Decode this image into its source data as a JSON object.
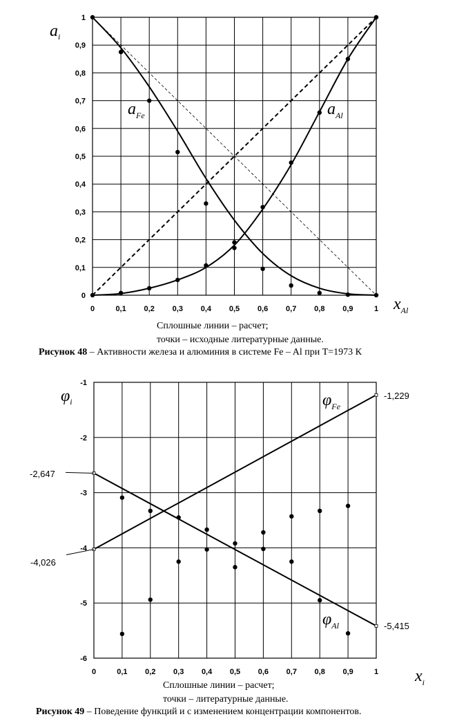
{
  "chart_data": [
    {
      "type": "line",
      "xlim": [
        0,
        1
      ],
      "ylim": [
        0,
        1
      ],
      "x_ticks": [
        "0",
        "0,1",
        "0,2",
        "0,3",
        "0,4",
        "0,5",
        "0,6",
        "0,7",
        "0,8",
        "0,9",
        "1"
      ],
      "y_ticks": [
        "0",
        "0,1",
        "0,2",
        "0,3",
        "0,4",
        "0,5",
        "0,6",
        "0,7",
        "0,8",
        "0,9",
        "1"
      ],
      "ylabel": {
        "main": "a",
        "sub": "i"
      },
      "xlabel": {
        "main": "x",
        "sub": "Al"
      },
      "grid": true,
      "series": [
        {
          "name": "a_Fe",
          "style": "solid",
          "x": [
            0,
            0.1,
            0.2,
            0.3,
            0.4,
            0.5,
            0.6,
            0.7,
            0.8,
            0.9,
            1
          ],
          "values": [
            1,
            0.89,
            0.75,
            0.59,
            0.42,
            0.27,
            0.15,
            0.07,
            0.025,
            0.005,
            0
          ]
        },
        {
          "name": "a_Al",
          "style": "solid",
          "x": [
            0,
            0.1,
            0.2,
            0.3,
            0.4,
            0.5,
            0.6,
            0.7,
            0.8,
            0.9,
            1
          ],
          "values": [
            0,
            0.006,
            0.025,
            0.055,
            0.1,
            0.18,
            0.31,
            0.47,
            0.66,
            0.85,
            1
          ]
        },
        {
          "name": "Raoult Al",
          "style": "dashed",
          "x": [
            0,
            1
          ],
          "values": [
            0,
            1
          ]
        },
        {
          "name": "Raoult Fe",
          "style": "thin-dashed",
          "x": [
            0,
            1
          ],
          "values": [
            1,
            0
          ]
        },
        {
          "name": "a_Fe points",
          "style": "points",
          "x": [
            0,
            0.1,
            0.2,
            0.3,
            0.4,
            0.5,
            0.6,
            0.7,
            0.8,
            0.9,
            1
          ],
          "values": [
            1,
            0.875,
            0.7,
            0.515,
            0.33,
            0.17,
            0.095,
            0.035,
            0.008,
            0.002,
            0
          ]
        },
        {
          "name": "a_Al points",
          "style": "points",
          "x": [
            0,
            0.1,
            0.2,
            0.3,
            0.4,
            0.5,
            0.6,
            0.7,
            0.8,
            0.9,
            1
          ],
          "values": [
            0,
            0.008,
            0.025,
            0.055,
            0.107,
            0.19,
            0.317,
            0.477,
            0.657,
            0.85,
            1
          ]
        }
      ],
      "annotations": [
        {
          "main": "a",
          "sub": "Fe"
        },
        {
          "main": "a",
          "sub": "Al"
        }
      ],
      "notes": [
        "Сплошные линии – расчет;",
        "точки – исходные литературные данные."
      ],
      "caption": {
        "bold": "Рисунок 48",
        "rest": " – Активности железа и алюминия в системе Fe – Al  при T=1973 К"
      }
    },
    {
      "type": "line",
      "xlim": [
        0,
        1
      ],
      "ylim": [
        -6,
        -1
      ],
      "x_ticks": [
        "0",
        "0,1",
        "0,2",
        "0,3",
        "0,4",
        "0,5",
        "0,6",
        "0,7",
        "0,8",
        "0,9",
        "1"
      ],
      "y_ticks": [
        "-1",
        "-2",
        "-3",
        "-4",
        "-5",
        "-6"
      ],
      "ylabel": {
        "main": "φ",
        "sub": "i"
      },
      "xlabel": {
        "main": "x",
        "sub": "i"
      },
      "grid": true,
      "series": [
        {
          "name": "φ_Fe",
          "style": "solid",
          "x": [
            0,
            1
          ],
          "values": [
            -4.026,
            -1.229
          ]
        },
        {
          "name": "φ_Al",
          "style": "solid",
          "x": [
            0,
            1
          ],
          "values": [
            -2.647,
            -5.415
          ]
        },
        {
          "name": "points A",
          "style": "points",
          "x": [
            0.1,
            0.2,
            0.3,
            0.4,
            0.5,
            0.6,
            0.7,
            0.8,
            0.9
          ],
          "values": [
            -3.09,
            -3.33,
            -3.45,
            -3.67,
            -3.92,
            -3.72,
            -3.43,
            -3.33,
            -3.24
          ]
        },
        {
          "name": "points B",
          "style": "points",
          "x": [
            0.1,
            0.2,
            0.3,
            0.4,
            0.5,
            0.6,
            0.7,
            0.8,
            0.9
          ],
          "values": [
            -5.56,
            -4.94,
            -4.25,
            -4.03,
            -4.35,
            -4.02,
            -4.25,
            -4.95,
            -5.55
          ]
        }
      ],
      "value_labels": [
        "-1,229",
        "-2,647",
        "-4,026",
        "-5,415"
      ],
      "annotations": [
        {
          "main": "φ",
          "sub": "Fe"
        },
        {
          "main": "φ",
          "sub": "Al"
        }
      ],
      "notes": [
        "Сплошные линии – расчет;",
        "точки – литературные данные."
      ],
      "caption": {
        "bold": "Рисунок 49",
        "rest": " – Поведение функций  и  с изменением концентрации компонентов."
      }
    }
  ]
}
